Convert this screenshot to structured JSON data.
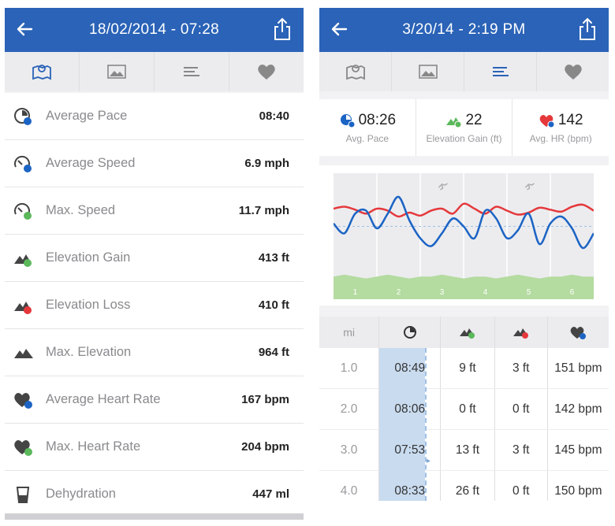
{
  "left": {
    "header": {
      "title": "18/02/2014 - 07:28"
    },
    "tabs": [
      {
        "icon": "map-icon",
        "active": true
      },
      {
        "icon": "image-icon",
        "active": false
      },
      {
        "icon": "list-icon",
        "active": false
      },
      {
        "icon": "heart-icon",
        "active": false
      }
    ],
    "stats": [
      {
        "icon": "pace-icon",
        "label": "Average Pace",
        "value": "08:40"
      },
      {
        "icon": "speedometer-icon",
        "label": "Average Speed",
        "value": "6.9 mph"
      },
      {
        "icon": "speedometer-plus-icon",
        "label": "Max. Speed",
        "value": "11.7 mph"
      },
      {
        "icon": "mountain-up-icon",
        "label": "Elevation Gain",
        "value": "413 ft"
      },
      {
        "icon": "mountain-down-icon",
        "label": "Elevation Loss",
        "value": "410 ft"
      },
      {
        "icon": "mountain-icon",
        "label": "Max. Elevation",
        "value": "964 ft"
      },
      {
        "icon": "heart-avg-icon",
        "label": "Average Heart Rate",
        "value": "167 bpm"
      },
      {
        "icon": "heart-max-icon",
        "label": "Max. Heart Rate",
        "value": "204 bpm"
      },
      {
        "icon": "glass-icon",
        "label": "Dehydration",
        "value": "447 ml"
      }
    ]
  },
  "right": {
    "header": {
      "title": "3/20/14 - 2:19 PM"
    },
    "tabs": [
      {
        "icon": "map-icon",
        "active": false
      },
      {
        "icon": "image-icon",
        "active": false
      },
      {
        "icon": "list-icon",
        "active": true
      },
      {
        "icon": "heart-icon",
        "active": false
      }
    ],
    "summary": [
      {
        "icon": "pace-icon",
        "value": "08:26",
        "label": "Avg. Pace"
      },
      {
        "icon": "mountain-up-icon",
        "value": "22",
        "label": "Elevation Gain (ft)"
      },
      {
        "icon": "heart-icon",
        "value": "142",
        "label": "Avg. HR (bpm)"
      }
    ],
    "chart_data": {
      "type": "line",
      "x": [
        0,
        0.25,
        0.5,
        0.75,
        1,
        1.25,
        1.5,
        1.75,
        2,
        2.25,
        2.5,
        2.75,
        3,
        3.25,
        3.5,
        3.75,
        4,
        4.25,
        4.5,
        4.75,
        5,
        5.25,
        5.5,
        5.75,
        6
      ],
      "xticks": [
        "1",
        "2",
        "3",
        "4",
        "5",
        "6"
      ],
      "series": [
        {
          "values": [
            60,
            62,
            59,
            55,
            60,
            58,
            52,
            56,
            53,
            58,
            60,
            55,
            65,
            60,
            55,
            62,
            58,
            54,
            56,
            61,
            59,
            57,
            62,
            64,
            58
          ]
        },
        {
          "values": [
            45,
            35,
            55,
            58,
            40,
            55,
            72,
            48,
            30,
            22,
            35,
            50,
            42,
            30,
            58,
            50,
            30,
            38,
            55,
            24,
            45,
            52,
            40,
            20,
            35
          ]
        }
      ],
      "elevation": [
        12,
        13,
        12,
        11,
        12,
        13,
        12,
        11,
        12,
        12,
        13,
        12,
        11,
        12,
        12,
        11,
        12,
        13,
        12,
        11,
        12,
        12,
        13,
        12,
        12
      ],
      "colors": {
        "heart_rate": "#e5383b",
        "pace": "#1c64c4",
        "elevation": "#b4dba0",
        "background": "#ececef"
      },
      "markers": [
        "runner-icon",
        "runner-icon"
      ]
    },
    "table": {
      "headers": [
        {
          "text": "mi"
        },
        {
          "icon": "pace-icon"
        },
        {
          "icon": "mountain-up-icon"
        },
        {
          "icon": "mountain-down-icon"
        },
        {
          "icon": "heart-icon"
        }
      ],
      "rows": [
        [
          "1.0",
          "08:49",
          "9 ft",
          "3 ft",
          "151 bpm"
        ],
        [
          "2.0",
          "08:06",
          "0 ft",
          "0 ft",
          "142 bpm"
        ],
        [
          "3.0",
          "07:53",
          "13 ft",
          "3 ft",
          "145 bpm"
        ],
        [
          "4.0",
          "08:33",
          "26 ft",
          "0 ft",
          "150 bpm"
        ]
      ]
    }
  }
}
